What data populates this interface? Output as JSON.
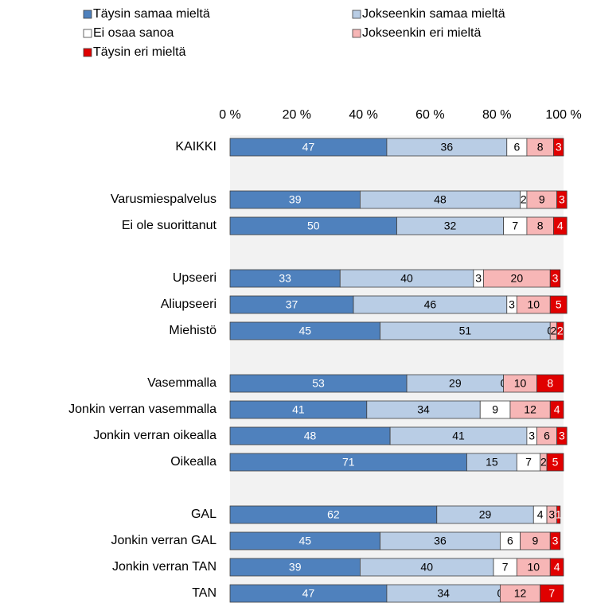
{
  "chart_data": {
    "type": "stacked-bar-horizontal",
    "categories": [
      "KAIKKI",
      null,
      "Varusmiespalvelus",
      "Ei ole suorittanut",
      null,
      "Upseeri",
      "Aliupseeri",
      "Miehistö",
      null,
      "Vasemmalla",
      "Jonkin verran vasemmalla",
      "Jonkin verran oikealla",
      "Oikealla",
      null,
      "GAL",
      "Jonkin verran GAL",
      "Jonkin verran TAN",
      "TAN"
    ],
    "series": [
      {
        "name": "Täysin samaa mieltä",
        "color": "#4f81bd",
        "values": [
          47,
          null,
          39,
          50,
          null,
          33,
          37,
          45,
          null,
          53,
          41,
          48,
          71,
          null,
          62,
          45,
          39,
          47
        ]
      },
      {
        "name": "Jokseenkin samaa mieltä",
        "color": "#b9cde5",
        "values": [
          36,
          null,
          48,
          32,
          null,
          40,
          46,
          51,
          null,
          29,
          34,
          41,
          15,
          null,
          29,
          36,
          40,
          34
        ]
      },
      {
        "name": "Ei osaa sanoa",
        "color": "#ffffff",
        "values": [
          6,
          null,
          2,
          7,
          null,
          3,
          3,
          0,
          null,
          0,
          9,
          3,
          7,
          null,
          4,
          6,
          7,
          0
        ]
      },
      {
        "name": "Jokseenkin eri mieltä",
        "color": "#f7b6b6",
        "values": [
          8,
          null,
          9,
          8,
          null,
          20,
          10,
          2,
          null,
          10,
          12,
          6,
          2,
          null,
          3,
          9,
          10,
          12
        ]
      },
      {
        "name": "Täysin eri mieltä",
        "color": "#e00000",
        "values": [
          3,
          null,
          3,
          4,
          null,
          3,
          5,
          2,
          null,
          8,
          4,
          3,
          5,
          null,
          1,
          3,
          4,
          7
        ]
      }
    ],
    "xlim": [
      0,
      100
    ],
    "xticks": [
      {
        "value": 0,
        "label": "0 %"
      },
      {
        "value": 20,
        "label": "20 %"
      },
      {
        "value": 40,
        "label": "40 %"
      },
      {
        "value": 60,
        "label": "60 %"
      },
      {
        "value": 80,
        "label": "80 %"
      },
      {
        "value": 100,
        "label": "100 %"
      }
    ],
    "legend": "top"
  }
}
